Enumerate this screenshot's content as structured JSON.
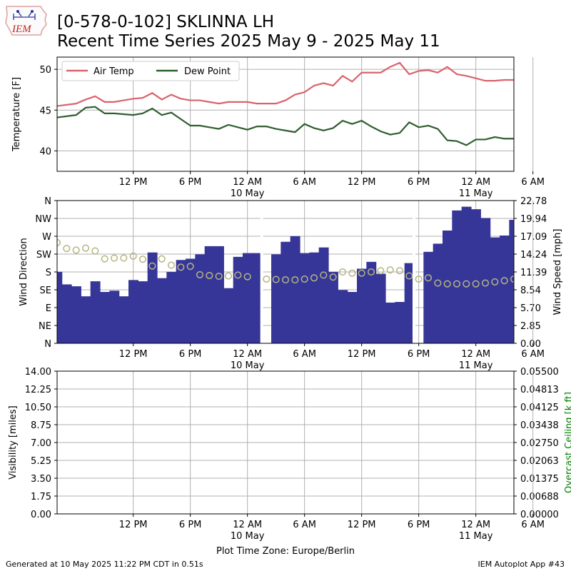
{
  "header": {
    "logo_text": "IEM",
    "title_line1": "[0-578-0-102] SKLINNA LH",
    "title_line2": "Recent Time Series 2025 May 9 - 2025 May 11"
  },
  "footer": {
    "generated": "Generated at 10 May 2025 11:22 PM CDT in 0.51s",
    "app": "IEM Autoplot App #43"
  },
  "colors": {
    "air_temp": "#d9636b",
    "dew_point": "#2f5e2f",
    "wind_speed_bars": "#363699",
    "wind_direction_markers": "#b5b57f",
    "ceiling_label": "#008000",
    "grid": "#b0b0b0"
  },
  "chart_data": [
    {
      "type": "line",
      "panel": "temperature",
      "ylabel": "Temperature [F]",
      "ylim": [
        37.5,
        51.5
      ],
      "y_ticks": [
        40,
        45,
        50
      ],
      "x_range_hours": [
        -8,
        40
      ],
      "x_ticks": [
        {
          "h": 0,
          "label": "12 PM"
        },
        {
          "h": 6,
          "label": "6 PM"
        },
        {
          "h": 12,
          "label": "12 AM",
          "sublabel": "10 May"
        },
        {
          "h": 18,
          "label": "6 AM"
        },
        {
          "h": 24,
          "label": "12 PM"
        },
        {
          "h": 30,
          "label": "6 PM"
        },
        {
          "h": 36,
          "label": "12 AM",
          "sublabel": "11 May"
        },
        {
          "h": 42,
          "label": "6 AM"
        }
      ],
      "grid": true,
      "legend_position": "top-left",
      "series": [
        {
          "name": "Air Temp",
          "color": "#d9636b",
          "x": [
            -8,
            -6,
            -5,
            -4,
            -3,
            -2,
            -1,
            0,
            1,
            2,
            3,
            4,
            5,
            6,
            7,
            8,
            9,
            10,
            11,
            12,
            13,
            14,
            15,
            16,
            17,
            18,
            19,
            20,
            21,
            22,
            23,
            24,
            25,
            26,
            27,
            28,
            29,
            30,
            31,
            32,
            33,
            34,
            35,
            36,
            37,
            38,
            39,
            40,
            41,
            42
          ],
          "values": [
            45.5,
            45.8,
            46.3,
            46.7,
            46.0,
            46.0,
            46.2,
            46.4,
            46.5,
            47.1,
            46.3,
            46.9,
            46.4,
            46.2,
            46.2,
            46.0,
            45.8,
            46.0,
            46.0,
            46.0,
            45.8,
            45.8,
            45.8,
            46.2,
            46.9,
            47.2,
            48.0,
            48.3,
            48.0,
            49.2,
            48.5,
            49.6,
            49.6,
            49.6,
            50.3,
            50.8,
            49.4,
            49.8,
            49.9,
            49.6,
            50.3,
            49.4,
            49.2,
            48.9,
            48.6,
            48.6,
            48.7,
            48.7,
            48.7,
            48.7
          ]
        },
        {
          "name": "Dew Point",
          "color": "#2f5e2f",
          "x": [
            -8,
            -6,
            -5,
            -4,
            -3,
            -2,
            -1,
            0,
            1,
            2,
            3,
            4,
            5,
            6,
            7,
            8,
            9,
            10,
            11,
            12,
            13,
            14,
            15,
            16,
            17,
            18,
            19,
            20,
            21,
            22,
            23,
            24,
            25,
            26,
            27,
            28,
            29,
            30,
            31,
            32,
            33,
            34,
            35,
            36,
            37,
            38,
            39,
            40,
            41,
            42
          ],
          "values": [
            44.1,
            44.4,
            45.3,
            45.4,
            44.6,
            44.6,
            44.5,
            44.4,
            44.6,
            45.2,
            44.4,
            44.7,
            43.9,
            43.1,
            43.1,
            42.9,
            42.7,
            43.2,
            42.9,
            42.6,
            43.0,
            43.0,
            42.7,
            42.5,
            42.3,
            43.3,
            42.8,
            42.5,
            42.8,
            43.7,
            43.3,
            43.7,
            43.0,
            42.4,
            42.0,
            42.2,
            43.5,
            42.9,
            43.1,
            42.7,
            41.3,
            41.2,
            40.7,
            41.4,
            41.4,
            41.7,
            41.5,
            41.5,
            41.5,
            41.5
          ]
        }
      ]
    },
    {
      "type": "bar",
      "panel": "wind",
      "ylabel_left": "Wind Direction",
      "ylabel_right": "Wind Speed [mph]",
      "left_ticks": [
        "N",
        "NE",
        "E",
        "SE",
        "S",
        "SW",
        "W",
        "NW",
        "N"
      ],
      "right_ticks": [
        "0.00",
        "2.85",
        "5.70",
        "8.54",
        "11.39",
        "14.24",
        "17.09",
        "19.94",
        "22.78"
      ],
      "direction_ylim": [
        0,
        360
      ],
      "speed_ylim": [
        0,
        22.78
      ],
      "x_range_hours": [
        -8,
        40
      ],
      "grid": true,
      "speed_bars": {
        "name": "Wind Speed",
        "color": "#363699",
        "bar_width_hours": 1,
        "start": [
          -8.5,
          -7.5,
          -6.5,
          -5.5,
          -4.5,
          -3.5,
          -2.5,
          -1.5,
          -0.5,
          0.5,
          1.5,
          2.5,
          3.5,
          4.5,
          5.5,
          6.5,
          7.5,
          8.5,
          9.5,
          10.5,
          11.5,
          12.5,
          14.5,
          15.5,
          16.5,
          17.5,
          18.5,
          19.5,
          20.5,
          21.5,
          22.5,
          23.5,
          24.5,
          25.5,
          26.5,
          27.5,
          28.5,
          30.5,
          31.5,
          32.5,
          33.5,
          34.5,
          35.5,
          36.5,
          37.5,
          38.5,
          39.5,
          40.5,
          41.5
        ],
        "values": [
          11.4,
          9.4,
          9.1,
          7.5,
          9.9,
          8.2,
          8.4,
          7.5,
          10.1,
          9.9,
          14.5,
          10.4,
          11.4,
          13.3,
          13.5,
          14.2,
          15.5,
          15.5,
          8.8,
          13.8,
          14.4,
          14.4,
          14.2,
          16.2,
          17.1,
          14.4,
          14.5,
          15.3,
          11.4,
          8.5,
          8.2,
          11.9,
          13.0,
          11.1,
          6.5,
          6.6,
          12.8,
          14.6,
          15.9,
          18.0,
          21.2,
          21.8,
          21.4,
          20.0,
          16.9,
          17.2,
          19.7,
          19.6,
          19.6
        ],
        "gaps_hours": [
          13.5,
          29.5
        ]
      },
      "direction_markers": {
        "name": "Wind Direction",
        "color": "#b5b57f",
        "unit": "degrees",
        "x": [
          -8,
          -7,
          -6,
          -5,
          -4,
          -3,
          -2,
          -1,
          0,
          1,
          2,
          3,
          4,
          5,
          6,
          7,
          8,
          9,
          10,
          11,
          12,
          14,
          15,
          16,
          17,
          18,
          19,
          20,
          21,
          22,
          23,
          24,
          25,
          26,
          27,
          28,
          29,
          30,
          31,
          32,
          33,
          34,
          35,
          36,
          37,
          38,
          39,
          40,
          41,
          42
        ],
        "values": [
          254,
          239,
          235,
          240,
          233,
          213,
          215,
          215,
          220,
          212,
          195,
          213,
          197,
          192,
          194,
          173,
          171,
          169,
          170,
          172,
          168,
          162,
          161,
          160,
          160,
          162,
          165,
          172,
          167,
          180,
          177,
          177,
          180,
          183,
          185,
          183,
          170,
          162,
          165,
          152,
          150,
          150,
          150,
          150,
          152,
          155,
          158,
          162,
          167,
          170
        ]
      }
    },
    {
      "type": "line",
      "panel": "visibility",
      "ylabel_left": "Visibility [miles]",
      "ylabel_right": "Overcast Ceiling [k ft]",
      "left_ticks": [
        "0.00",
        "1.75",
        "3.50",
        "5.25",
        "7.00",
        "8.75",
        "10.50",
        "12.25",
        "14.00"
      ],
      "right_ticks": [
        "0.00000",
        "0.00688",
        "0.01375",
        "0.02063",
        "0.02750",
        "0.03438",
        "0.04125",
        "0.04813",
        "0.05500"
      ],
      "ylim_left": [
        0,
        14
      ],
      "ylim_right": [
        0,
        0.055
      ],
      "xlabel": "Plot Time Zone: Europe/Berlin",
      "grid": true,
      "series": []
    }
  ]
}
